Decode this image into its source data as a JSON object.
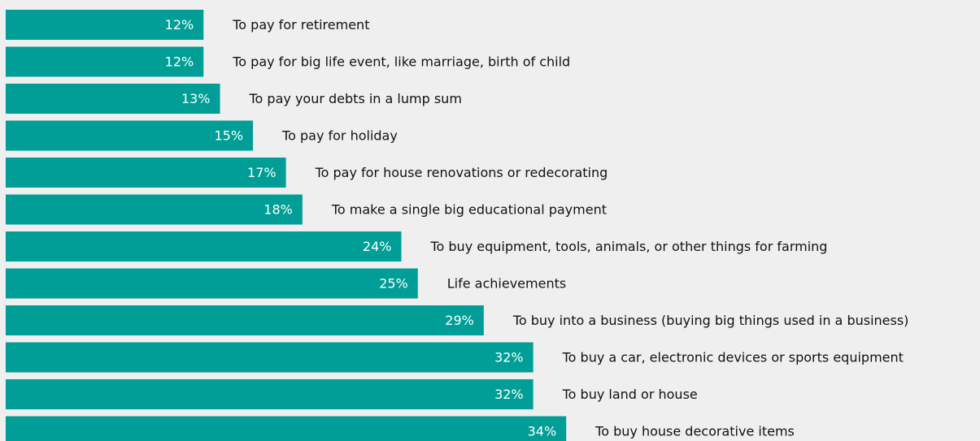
{
  "chart_data": {
    "type": "bar",
    "orientation": "horizontal",
    "color": "#009e96",
    "categories": [
      "To pay for retirement",
      "To pay for big life event, like marriage, birth of child",
      "To pay your debts in a lump sum",
      "To pay for holiday",
      "To pay for house renovations or redecorating",
      "To make a single big educational payment",
      "To buy equipment, tools, animals, or other things for farming",
      "Life achievements",
      "To buy into a business (buying big things used in a business)",
      "To buy a car, electronic devices or sports equipment",
      "To buy land or house",
      "To buy house decorative items"
    ],
    "values": [
      12,
      12,
      13,
      15,
      17,
      18,
      24,
      25,
      29,
      32,
      32,
      34
    ],
    "value_labels": [
      "12%",
      "12%",
      "13%",
      "15%",
      "17%",
      "18%",
      "24%",
      "25%",
      "29%",
      "32%",
      "32%",
      "34%"
    ]
  }
}
